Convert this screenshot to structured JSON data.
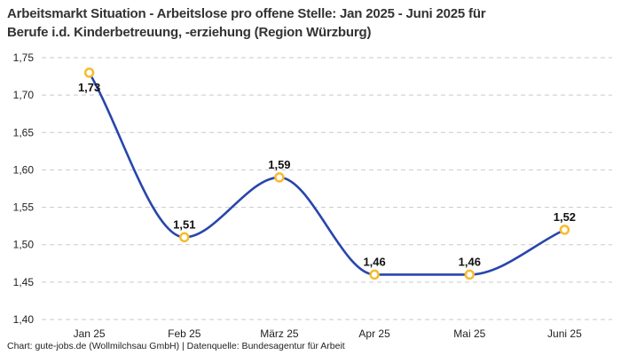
{
  "header": {
    "title_lines": [
      "Arbeitsmarkt Situation - Arbeitslose pro offene Stelle: Jan 2025 - Juni 2025 für",
      "Berufe i.d. Kinderbetreuung, -erziehung (Region Würzburg)"
    ]
  },
  "footer": {
    "credit": "Chart: gute-jobs.de (Wollmilchsau GmbH) | Datenquelle: Bundesagentur für Arbeit"
  },
  "chart_data": {
    "type": "line",
    "title": "Arbeitsmarkt Situation - Arbeitslose pro offene Stelle: Jan 2025 - Juni 2025 für Berufe i.d. Kinderbetreuung, -erziehung (Region Würzburg)",
    "categories": [
      "Jan 25",
      "Feb 25",
      "März 25",
      "Apr 25",
      "Mai 25",
      "Juni 25"
    ],
    "values": [
      1.73,
      1.51,
      1.59,
      1.46,
      1.46,
      1.52
    ],
    "point_labels": [
      "1,73",
      "1,51",
      "1,59",
      "1,46",
      "1,46",
      "1,52"
    ],
    "point_label_positions": [
      "below",
      "above",
      "above",
      "above",
      "above",
      "above"
    ],
    "xlabel": "",
    "ylabel": "",
    "ylim": [
      1.4,
      1.75
    ],
    "y_ticks": [
      {
        "value": 1.4,
        "label": "1,40"
      },
      {
        "value": 1.45,
        "label": "1,45"
      },
      {
        "value": 1.5,
        "label": "1,50"
      },
      {
        "value": 1.55,
        "label": "1,55"
      },
      {
        "value": 1.6,
        "label": "1,60"
      },
      {
        "value": 1.65,
        "label": "1,65"
      },
      {
        "value": 1.7,
        "label": "1,70"
      },
      {
        "value": 1.75,
        "label": "1,75"
      }
    ],
    "grid": "horizontal-dashed",
    "legend": "none",
    "line_shape": "spline",
    "colors": {
      "line": "#2846ab",
      "marker_ring": "#f6bb2e",
      "marker_fill": "#ffffff",
      "gridline": "#c9c9c9",
      "title_text": "#333333",
      "tick_text": "#1f1f1f",
      "data_label_text": "#111111"
    }
  }
}
